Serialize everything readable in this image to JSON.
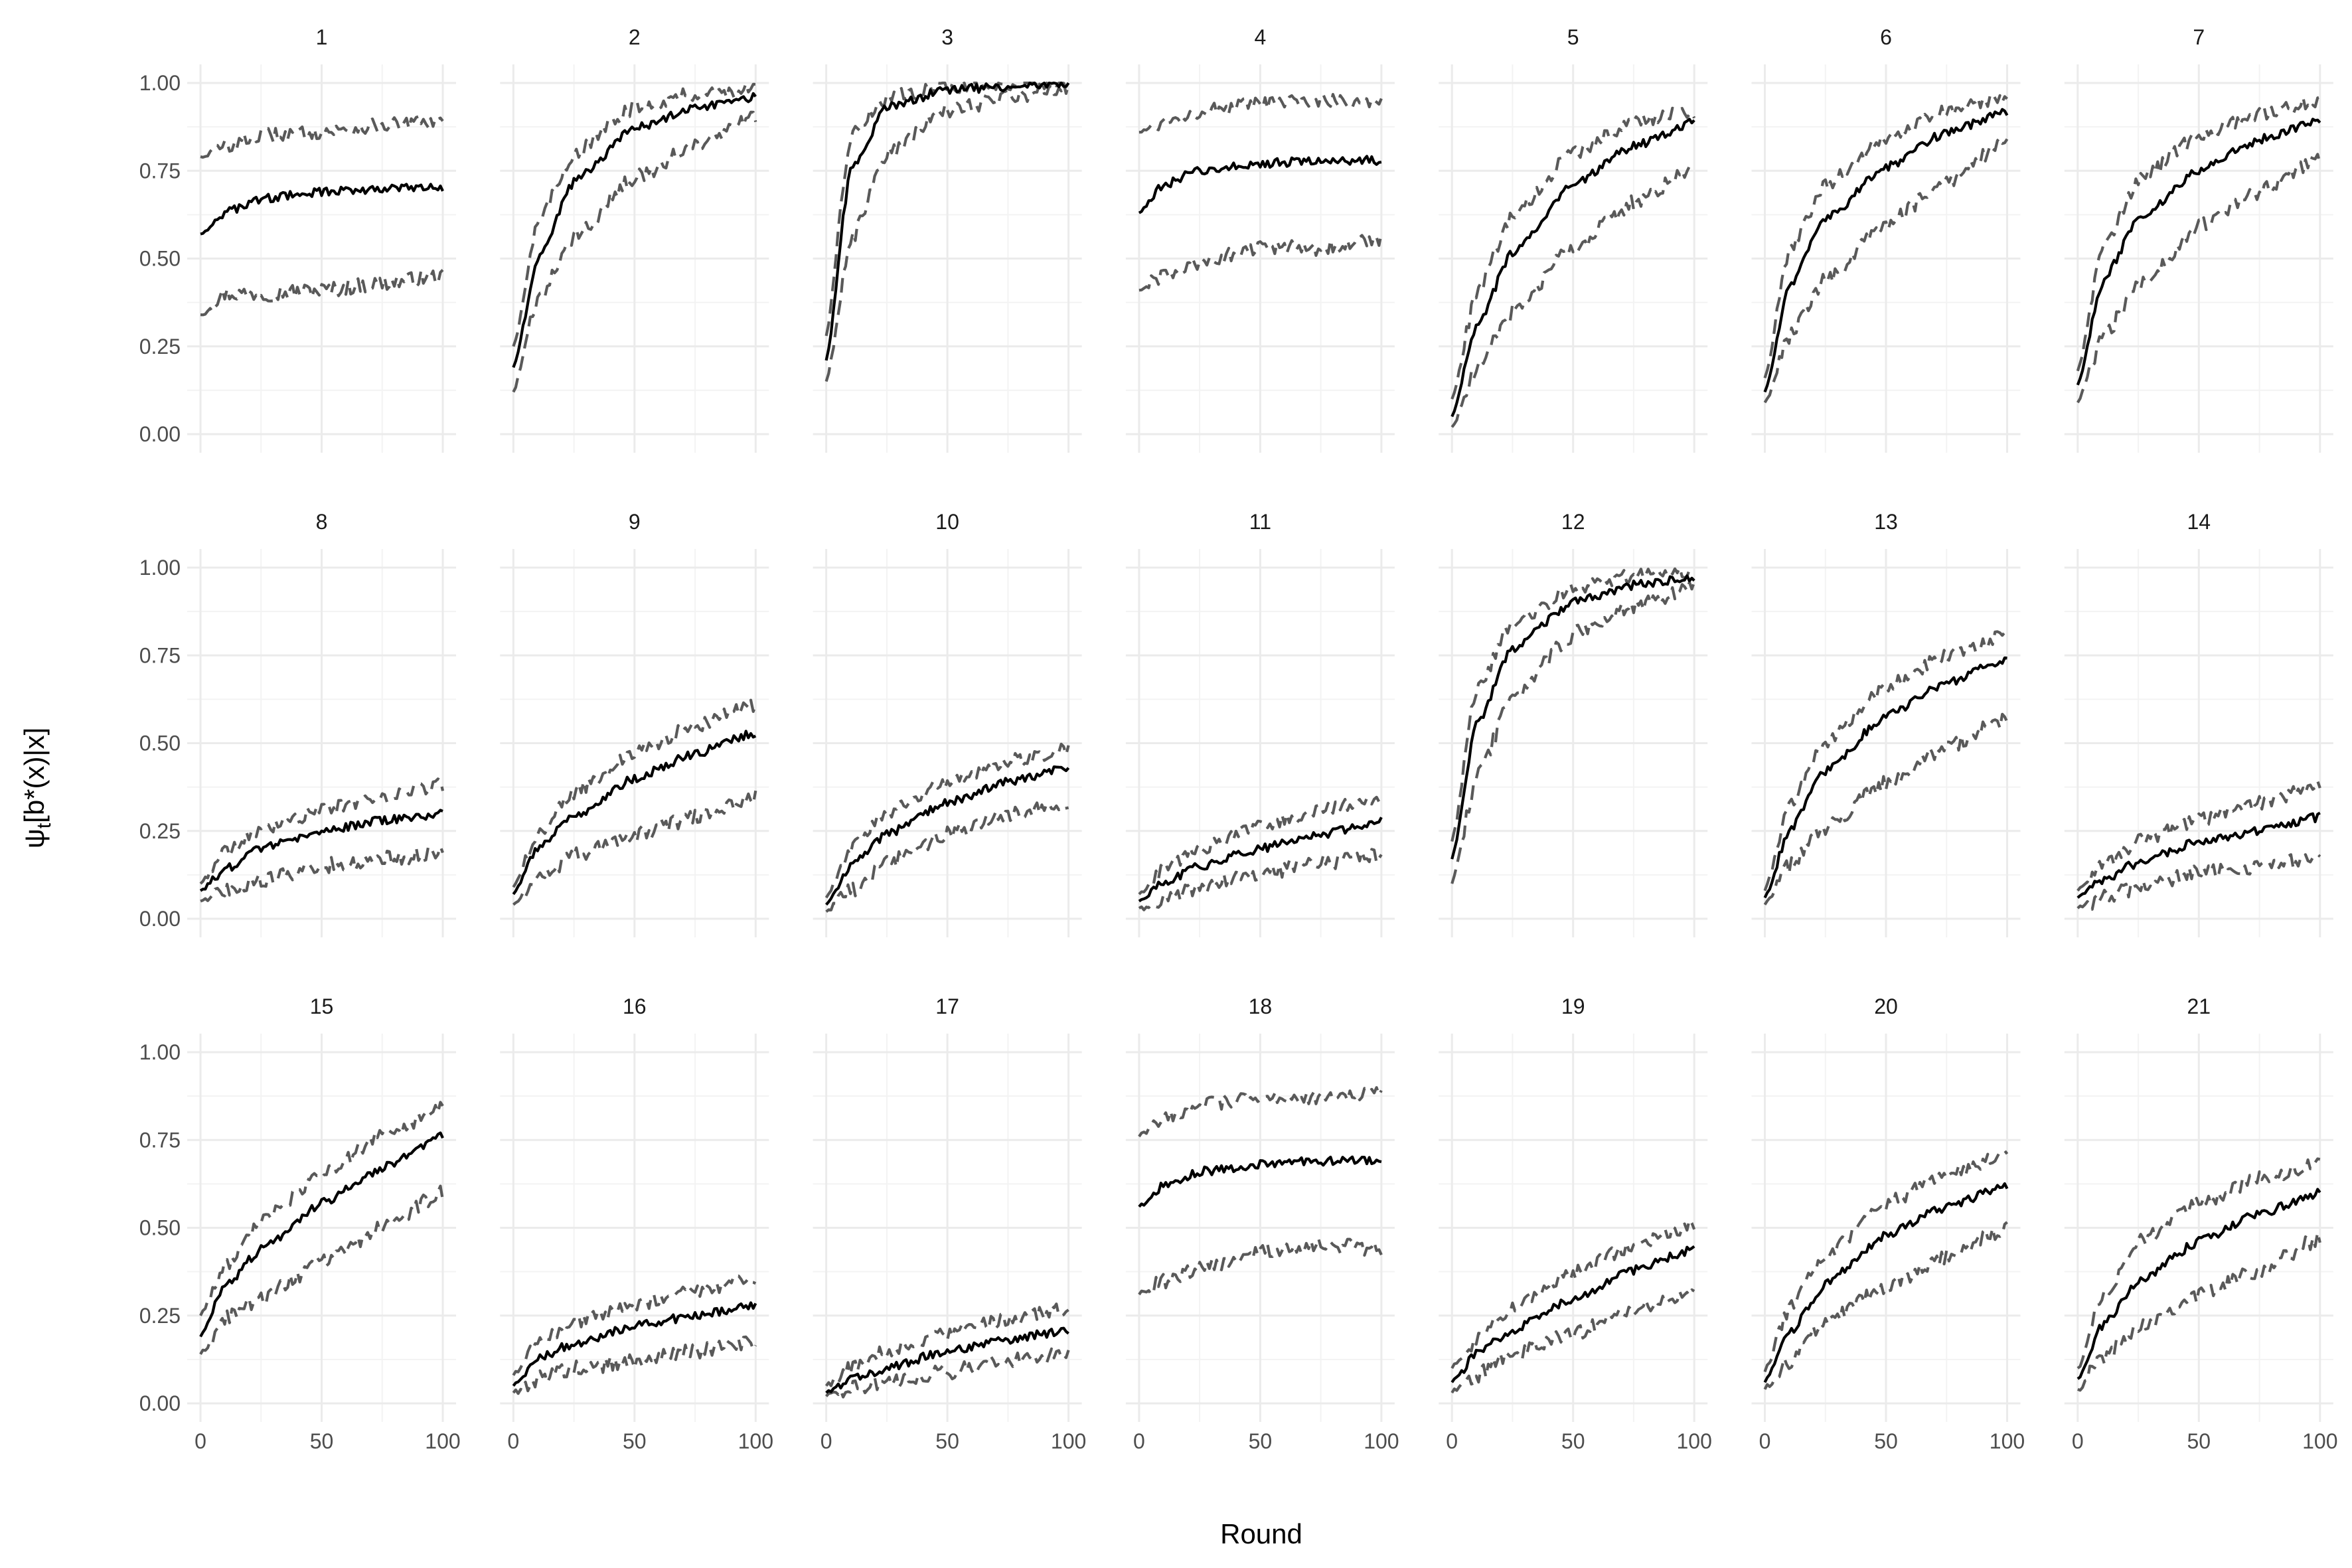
{
  "figure": {
    "xlabel": "Round",
    "ylabel_main": "ψ",
    "ylabel_sub": "t",
    "ylabel_rest": "[b*(x)|x]"
  },
  "chart_data": {
    "type": "line",
    "facet_by": "panel",
    "layout": "3 rows x 7 columns",
    "x_range": [
      0,
      100
    ],
    "y_range": [
      0,
      1
    ],
    "x_ticks": [
      0,
      50,
      100
    ],
    "x_tick_labels": [
      "0",
      "50",
      "100"
    ],
    "y_ticks": [
      0,
      0.25,
      0.5,
      0.75,
      1
    ],
    "y_tick_labels": [
      "0.00",
      "0.25",
      "0.50",
      "0.75",
      "1.00"
    ],
    "grid": true,
    "line_styles": {
      "estimate": "solid black",
      "bounds": "dashed grey"
    },
    "colors": {
      "estimate": "#000000",
      "bounds": "#595959",
      "grid": "#ebebeb"
    },
    "panels": [
      {
        "label": "1",
        "x": [
          0,
          10,
          25,
          50,
          75,
          100
        ],
        "estimate": [
          0.57,
          0.63,
          0.67,
          0.69,
          0.7,
          0.7
        ],
        "lower": [
          0.34,
          0.4,
          0.4,
          0.41,
          0.43,
          0.45
        ],
        "upper": [
          0.79,
          0.82,
          0.85,
          0.86,
          0.88,
          0.89
        ]
      },
      {
        "label": "2",
        "x": [
          0,
          10,
          25,
          50,
          75,
          100
        ],
        "estimate": [
          0.19,
          0.5,
          0.72,
          0.87,
          0.93,
          0.96
        ],
        "lower": [
          0.12,
          0.38,
          0.56,
          0.73,
          0.82,
          0.9
        ],
        "upper": [
          0.25,
          0.6,
          0.8,
          0.93,
          0.97,
          0.98
        ]
      },
      {
        "label": "3",
        "x": [
          0,
          10,
          25,
          50,
          75,
          100
        ],
        "estimate": [
          0.21,
          0.75,
          0.93,
          0.98,
          0.99,
          1.0
        ],
        "lower": [
          0.15,
          0.55,
          0.8,
          0.92,
          0.96,
          0.99
        ],
        "upper": [
          0.28,
          0.85,
          0.96,
          0.99,
          1.0,
          1.0
        ]
      },
      {
        "label": "4",
        "x": [
          0,
          10,
          25,
          50,
          75,
          100
        ],
        "estimate": [
          0.63,
          0.71,
          0.75,
          0.77,
          0.78,
          0.78
        ],
        "lower": [
          0.41,
          0.45,
          0.49,
          0.53,
          0.53,
          0.55
        ],
        "upper": [
          0.86,
          0.89,
          0.92,
          0.94,
          0.95,
          0.95
        ]
      },
      {
        "label": "5",
        "x": [
          0,
          10,
          25,
          50,
          75,
          100
        ],
        "estimate": [
          0.05,
          0.3,
          0.52,
          0.71,
          0.82,
          0.89
        ],
        "lower": [
          0.02,
          0.18,
          0.35,
          0.53,
          0.66,
          0.76
        ],
        "upper": [
          0.1,
          0.4,
          0.62,
          0.8,
          0.89,
          0.92
        ]
      },
      {
        "label": "6",
        "x": [
          0,
          10,
          25,
          50,
          75,
          100
        ],
        "estimate": [
          0.12,
          0.42,
          0.61,
          0.76,
          0.86,
          0.92
        ],
        "lower": [
          0.09,
          0.28,
          0.44,
          0.6,
          0.72,
          0.83
        ],
        "upper": [
          0.16,
          0.52,
          0.71,
          0.84,
          0.92,
          0.96
        ]
      },
      {
        "label": "7",
        "x": [
          0,
          10,
          25,
          50,
          75,
          100
        ],
        "estimate": [
          0.14,
          0.43,
          0.61,
          0.75,
          0.84,
          0.89
        ],
        "lower": [
          0.09,
          0.27,
          0.42,
          0.59,
          0.69,
          0.79
        ],
        "upper": [
          0.18,
          0.53,
          0.72,
          0.85,
          0.91,
          0.95
        ]
      },
      {
        "label": "8",
        "x": [
          0,
          10,
          25,
          50,
          75,
          100
        ],
        "estimate": [
          0.08,
          0.14,
          0.2,
          0.25,
          0.28,
          0.3
        ],
        "lower": [
          0.05,
          0.08,
          0.11,
          0.15,
          0.17,
          0.19
        ],
        "upper": [
          0.1,
          0.19,
          0.25,
          0.31,
          0.35,
          0.38
        ]
      },
      {
        "label": "9",
        "x": [
          0,
          10,
          25,
          50,
          75,
          100
        ],
        "estimate": [
          0.07,
          0.2,
          0.29,
          0.4,
          0.47,
          0.53
        ],
        "lower": [
          0.04,
          0.11,
          0.18,
          0.24,
          0.29,
          0.35
        ],
        "upper": [
          0.09,
          0.24,
          0.36,
          0.47,
          0.55,
          0.61
        ]
      },
      {
        "label": "10",
        "x": [
          0,
          10,
          25,
          50,
          75,
          100
        ],
        "estimate": [
          0.04,
          0.15,
          0.24,
          0.33,
          0.39,
          0.43
        ],
        "lower": [
          0.02,
          0.08,
          0.16,
          0.24,
          0.3,
          0.33
        ],
        "upper": [
          0.06,
          0.2,
          0.3,
          0.39,
          0.45,
          0.48
        ]
      },
      {
        "label": "11",
        "x": [
          0,
          10,
          25,
          50,
          75,
          100
        ],
        "estimate": [
          0.05,
          0.1,
          0.15,
          0.2,
          0.24,
          0.28
        ],
        "lower": [
          0.03,
          0.05,
          0.09,
          0.13,
          0.16,
          0.18
        ],
        "upper": [
          0.07,
          0.14,
          0.2,
          0.26,
          0.31,
          0.34
        ]
      },
      {
        "label": "12",
        "x": [
          0,
          10,
          25,
          50,
          75,
          100
        ],
        "estimate": [
          0.17,
          0.55,
          0.77,
          0.9,
          0.95,
          0.97
        ],
        "lower": [
          0.1,
          0.4,
          0.63,
          0.81,
          0.89,
          0.94
        ],
        "upper": [
          0.22,
          0.65,
          0.84,
          0.94,
          0.98,
          0.99
        ]
      },
      {
        "label": "13",
        "x": [
          0,
          10,
          25,
          50,
          75,
          100
        ],
        "estimate": [
          0.06,
          0.25,
          0.42,
          0.58,
          0.67,
          0.74
        ],
        "lower": [
          0.04,
          0.15,
          0.26,
          0.39,
          0.49,
          0.57
        ],
        "upper": [
          0.08,
          0.32,
          0.5,
          0.66,
          0.75,
          0.81
        ]
      },
      {
        "label": "14",
        "x": [
          0,
          10,
          25,
          50,
          75,
          100
        ],
        "estimate": [
          0.06,
          0.11,
          0.16,
          0.22,
          0.25,
          0.29
        ],
        "lower": [
          0.03,
          0.06,
          0.09,
          0.13,
          0.15,
          0.17
        ],
        "upper": [
          0.08,
          0.15,
          0.22,
          0.28,
          0.33,
          0.38
        ]
      },
      {
        "label": "15",
        "x": [
          0,
          10,
          25,
          50,
          75,
          100
        ],
        "estimate": [
          0.19,
          0.33,
          0.44,
          0.57,
          0.67,
          0.76
        ],
        "lower": [
          0.14,
          0.24,
          0.3,
          0.4,
          0.5,
          0.6
        ],
        "upper": [
          0.25,
          0.39,
          0.52,
          0.65,
          0.76,
          0.84
        ]
      },
      {
        "label": "16",
        "x": [
          0,
          10,
          25,
          50,
          75,
          100
        ],
        "estimate": [
          0.05,
          0.13,
          0.17,
          0.22,
          0.25,
          0.28
        ],
        "lower": [
          0.03,
          0.07,
          0.1,
          0.12,
          0.15,
          0.17
        ],
        "upper": [
          0.08,
          0.17,
          0.23,
          0.28,
          0.32,
          0.36
        ]
      },
      {
        "label": "17",
        "x": [
          0,
          10,
          25,
          50,
          75,
          100
        ],
        "estimate": [
          0.03,
          0.07,
          0.1,
          0.15,
          0.18,
          0.21
        ],
        "lower": [
          0.02,
          0.04,
          0.06,
          0.09,
          0.12,
          0.14
        ],
        "upper": [
          0.05,
          0.1,
          0.15,
          0.2,
          0.24,
          0.27
        ]
      },
      {
        "label": "18",
        "x": [
          0,
          10,
          25,
          50,
          75,
          100
        ],
        "estimate": [
          0.56,
          0.62,
          0.66,
          0.68,
          0.69,
          0.69
        ],
        "lower": [
          0.31,
          0.35,
          0.38,
          0.43,
          0.45,
          0.44
        ],
        "upper": [
          0.76,
          0.81,
          0.85,
          0.87,
          0.87,
          0.88
        ]
      },
      {
        "label": "19",
        "x": [
          0,
          10,
          25,
          50,
          75,
          100
        ],
        "estimate": [
          0.06,
          0.14,
          0.21,
          0.3,
          0.38,
          0.44
        ],
        "lower": [
          0.03,
          0.08,
          0.14,
          0.2,
          0.27,
          0.32
        ],
        "upper": [
          0.1,
          0.18,
          0.27,
          0.37,
          0.45,
          0.51
        ]
      },
      {
        "label": "20",
        "x": [
          0,
          10,
          25,
          50,
          75,
          100
        ],
        "estimate": [
          0.06,
          0.2,
          0.34,
          0.48,
          0.56,
          0.62
        ],
        "lower": [
          0.04,
          0.12,
          0.23,
          0.33,
          0.42,
          0.5
        ],
        "upper": [
          0.09,
          0.27,
          0.42,
          0.57,
          0.65,
          0.71
        ]
      },
      {
        "label": "21",
        "x": [
          0,
          10,
          25,
          50,
          75,
          100
        ],
        "estimate": [
          0.07,
          0.22,
          0.35,
          0.46,
          0.54,
          0.6
        ],
        "lower": [
          0.04,
          0.13,
          0.22,
          0.31,
          0.38,
          0.47
        ],
        "upper": [
          0.1,
          0.3,
          0.46,
          0.57,
          0.64,
          0.68
        ]
      }
    ]
  }
}
